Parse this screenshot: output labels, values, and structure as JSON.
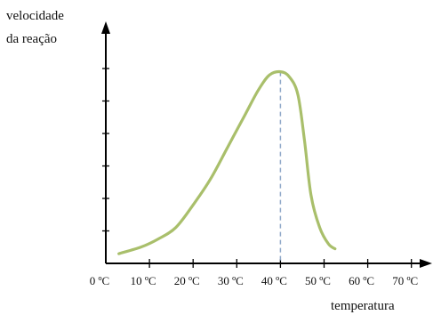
{
  "chart_data": {
    "type": "line",
    "ylabel_lines": [
      "velocidade",
      "da reação"
    ],
    "xlabel": "temperatura",
    "x_ticks": [
      0,
      10,
      20,
      30,
      40,
      50,
      60,
      70
    ],
    "x_tick_labels": [
      "0 ºC",
      "10 ºC",
      "20 ºC",
      "30 ºC",
      "40 ºC",
      "50 ºC",
      "60 ºC",
      "70 ºC"
    ],
    "y_tick_count": 6,
    "xlim": [
      0,
      75
    ],
    "ylim": [
      0,
      6
    ],
    "grid": false,
    "series": [
      {
        "color": "#a9bf6b",
        "points": [
          [
            3,
            0.3
          ],
          [
            8,
            0.5
          ],
          [
            12,
            0.75
          ],
          [
            16,
            1.1
          ],
          [
            20,
            1.8
          ],
          [
            24,
            2.6
          ],
          [
            28,
            3.6
          ],
          [
            32,
            4.6
          ],
          [
            35,
            5.35
          ],
          [
            37.5,
            5.8
          ],
          [
            40,
            5.9
          ],
          [
            42,
            5.75
          ],
          [
            44,
            5.2
          ],
          [
            45.5,
            3.8
          ],
          [
            47,
            2.1
          ],
          [
            49,
            1.1
          ],
          [
            51,
            0.6
          ],
          [
            52.5,
            0.45
          ]
        ]
      }
    ],
    "peak": {
      "x": 40,
      "y": 5.9,
      "marker": "dashed-vertical",
      "color": "#8fa8c8"
    }
  }
}
